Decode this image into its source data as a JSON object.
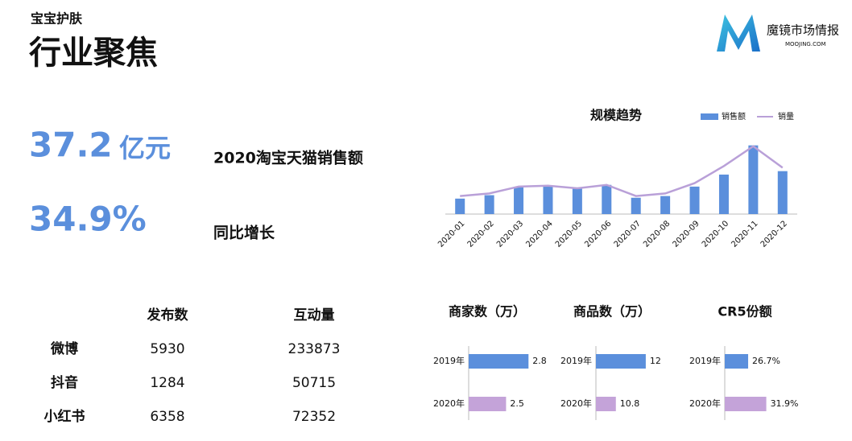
{
  "header": {
    "subtitle": "宝宝护肤",
    "title": "行业聚焦"
  },
  "logo": {
    "name": "魔镜市场情报",
    "url": "MOOJING.COM"
  },
  "kpis": [
    {
      "value": "37.2",
      "unit": "亿元",
      "label": "2020淘宝天猫销售额"
    },
    {
      "value": "34.9%",
      "label": "同比增长"
    }
  ],
  "table": {
    "columns": [
      "发布数",
      "互动量"
    ],
    "rows": [
      [
        "微博",
        5930,
        233873
      ],
      [
        "抖音",
        1284,
        50715
      ],
      [
        "小红书",
        6358,
        72352
      ]
    ]
  },
  "chart_data": [
    {
      "type": "bar",
      "title": "规模趋势",
      "categories": [
        "2020-01",
        "2020-02",
        "2020-03",
        "2020-04",
        "2020-05",
        "2020-06",
        "2020-07",
        "2020-08",
        "2020-09",
        "2020-10",
        "2020-11",
        "2020-12"
      ],
      "series": [
        {
          "name": "销售额",
          "type": "bar",
          "color": "#5b8fdc",
          "values": [
            18,
            22,
            31,
            33,
            31,
            34,
            19,
            21,
            32,
            46,
            80,
            50
          ]
        },
        {
          "name": "销量",
          "type": "line",
          "color": "#b9a0d8",
          "values": [
            21,
            24,
            32,
            33,
            30,
            34,
            21,
            24,
            36,
            56,
            79,
            54
          ]
        }
      ],
      "ylim": [
        0,
        90
      ],
      "legend": "top-right"
    },
    {
      "type": "hbar",
      "title": "商家数（万）",
      "categories": [
        "2019年",
        "2020年"
      ],
      "values": [
        2.8,
        2.5
      ],
      "colors": [
        "#5b8fdc",
        "#c4a3d9"
      ],
      "xlim": [
        2.0,
        3.4
      ]
    },
    {
      "type": "hbar",
      "title": "商品数（万）",
      "categories": [
        "2019年",
        "2020年"
      ],
      "values": [
        12,
        10.8
      ],
      "colors": [
        "#5b8fdc",
        "#c4a3d9"
      ],
      "xlim": [
        10,
        14.2
      ]
    },
    {
      "type": "hbar",
      "title": "CR5份额",
      "categories": [
        "2019年",
        "2020年"
      ],
      "values": [
        26.7,
        31.9
      ],
      "value_labels": [
        "26.7%",
        "31.9%"
      ],
      "colors": [
        "#5b8fdc",
        "#c4a3d9"
      ],
      "xlim": [
        20,
        50
      ]
    }
  ]
}
